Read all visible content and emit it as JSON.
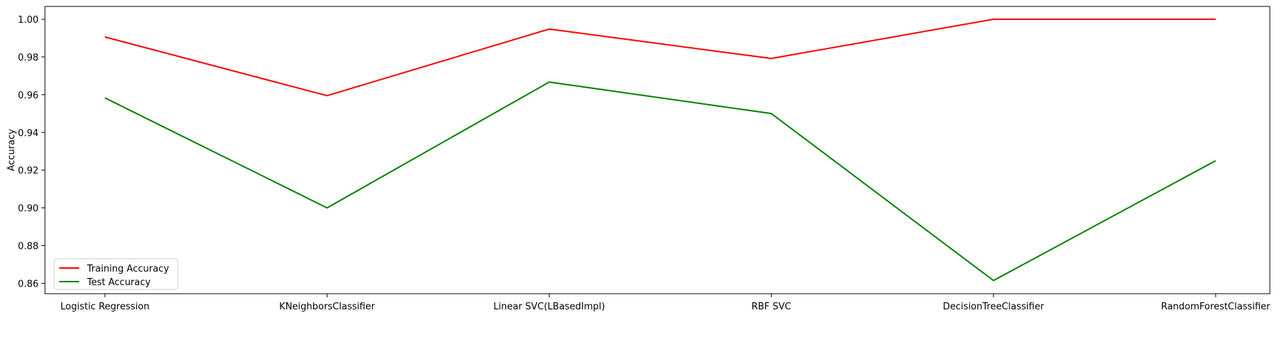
{
  "chart_data": {
    "type": "line",
    "title": "",
    "xlabel": "",
    "ylabel": "Accuracy",
    "categories": [
      "Logistic Regression",
      "KNeighborsClassifier",
      "Linear SVC(LBasedImpl)",
      "RBF SVC",
      "DecisionTreeClassifier",
      "RandomForestClassifier"
    ],
    "series": [
      {
        "name": "Training Accuracy",
        "color": "#ff0000",
        "values": [
          0.9906,
          0.9595,
          0.9948,
          0.9792,
          1.0,
          1.0
        ]
      },
      {
        "name": "Test Accuracy",
        "color": "#008000",
        "values": [
          0.9583,
          0.9,
          0.9667,
          0.95,
          0.8615,
          0.925
        ]
      }
    ],
    "ylim": [
      0.8545,
      1.0068
    ],
    "yticks": [
      0.86,
      0.88,
      0.9,
      0.92,
      0.94,
      0.96,
      0.98,
      1.0
    ],
    "ytick_labels": [
      "0.86",
      "0.88",
      "0.90",
      "0.92",
      "0.94",
      "0.96",
      "0.98",
      "1.00"
    ],
    "grid": false,
    "legend_position": "lower left"
  }
}
